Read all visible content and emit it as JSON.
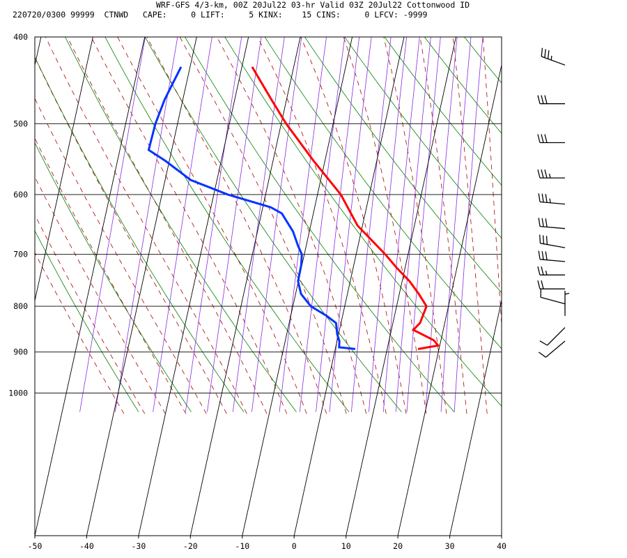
{
  "header": {
    "line1": "WRF-GFS 4/3-km, 00Z 20Jul22 03-hr Valid 03Z 20Jul22 Cottonwood ID",
    "line2": "220720/0300 99999  CTNWD   CAPE:     0 LIFT:     5 KINX:    15 CINS:     0 LFCV: -9999"
  },
  "chart_data": {
    "type": "skew-t",
    "title": "WRF-GFS 4/3-km, 00Z 20Jul22 03-hr Valid 03Z 20Jul22 Cottonwood ID",
    "x_axis": {
      "label": "",
      "range": [
        -50,
        40
      ],
      "ticks": [
        "-50",
        "-40",
        "-30",
        "-20",
        "-10",
        "0",
        "10",
        "20",
        "30",
        "40"
      ]
    },
    "y_axis": {
      "label": "",
      "scale": "log",
      "range": [
        1040,
        400
      ],
      "ticks": [
        "400",
        "500",
        "600",
        "700",
        "800",
        "900",
        "1000"
      ]
    },
    "series": [
      {
        "color": "#ff0000",
        "points": [
          [
            893,
            20.5
          ],
          [
            885,
            24.2
          ],
          [
            873,
            23
          ],
          [
            850,
            18.5
          ],
          [
            835,
            19.4
          ],
          [
            800,
            19.7
          ],
          [
            775,
            17.5
          ],
          [
            750,
            15
          ],
          [
            725,
            11.8
          ],
          [
            700,
            8.8
          ],
          [
            650,
            1.8
          ],
          [
            600,
            -3.2
          ],
          [
            550,
            -10.4
          ],
          [
            500,
            -17.8
          ],
          [
            470,
            -22
          ],
          [
            432,
            -27.6
          ]
        ]
      },
      {
        "color": "#0033ff",
        "points": [
          [
            893,
            8.4
          ],
          [
            889,
            5.2
          ],
          [
            875,
            4.9
          ],
          [
            860,
            4.1
          ],
          [
            835,
            3.2
          ],
          [
            820,
            1
          ],
          [
            800,
            -2.6
          ],
          [
            775,
            -5.2
          ],
          [
            750,
            -6.5
          ],
          [
            720,
            -6.8
          ],
          [
            700,
            -7.3
          ],
          [
            685,
            -8.5
          ],
          [
            660,
            -10.3
          ],
          [
            630,
            -13.5
          ],
          [
            620,
            -16
          ],
          [
            600,
            -25
          ],
          [
            578,
            -33
          ],
          [
            550,
            -39
          ],
          [
            535,
            -42.8
          ],
          [
            500,
            -43
          ],
          [
            470,
            -42.6
          ],
          [
            432,
            -41.3
          ]
        ]
      }
    ],
    "wind_barbs": [
      {
        "pressure": 430,
        "direction": 290,
        "speed_kt": 35
      },
      {
        "pressure": 475,
        "direction": 270,
        "speed_kt": 30
      },
      {
        "pressure": 525,
        "direction": 270,
        "speed_kt": 30
      },
      {
        "pressure": 575,
        "direction": 270,
        "speed_kt": 35
      },
      {
        "pressure": 615,
        "direction": 275,
        "speed_kt": 35
      },
      {
        "pressure": 655,
        "direction": 275,
        "speed_kt": 30
      },
      {
        "pressure": 688,
        "direction": 280,
        "speed_kt": 30
      },
      {
        "pressure": 713,
        "direction": 275,
        "speed_kt": 30
      },
      {
        "pressure": 738,
        "direction": 270,
        "speed_kt": 25
      },
      {
        "pressure": 765,
        "direction": 270,
        "speed_kt": 20
      },
      {
        "pressure": 795,
        "direction": 285,
        "speed_kt": 10
      },
      {
        "pressure": 820,
        "direction": 0,
        "speed_kt": 5
      },
      {
        "pressure": 845,
        "direction": 225,
        "speed_kt": 10
      },
      {
        "pressure": 875,
        "direction": 230,
        "speed_kt": 10
      }
    ],
    "background": {
      "isotherm_color": "#000000",
      "dry_adiabat_color": "#008000",
      "moist_adiabat_color": "#aa0000",
      "mixing_ratio_color": "#8a2be2"
    },
    "grid": true
  }
}
